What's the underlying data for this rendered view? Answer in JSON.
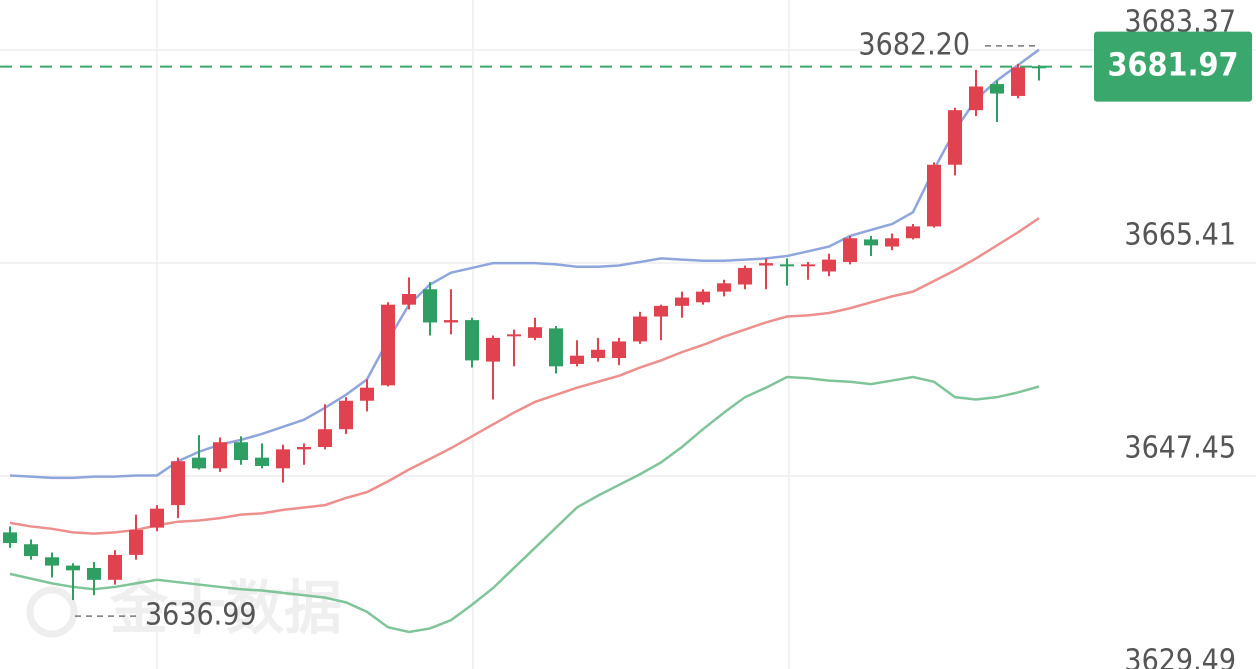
{
  "chart_data": {
    "type": "candlestick",
    "watermark": "金十数据",
    "up_color": "#e0434f",
    "down_color": "#2f9e62",
    "ylim": [
      3631.18,
      3687.59
    ],
    "yticks": [
      3629.49,
      3647.45,
      3665.41,
      3683.37
    ],
    "grid": true,
    "open": [
      3642.7,
      3641.7,
      3640.6,
      3639.9,
      3639.7,
      3638.7,
      3640.8,
      3643.1,
      3645.0,
      3649.0,
      3648.1,
      3650.3,
      3649.0,
      3648.1,
      3649.7,
      3649.9,
      3651.4,
      3653.8,
      3655.1,
      3661.9,
      3663.2,
      3660.4,
      3660.6,
      3657.1,
      3659.3,
      3659.1,
      3659.9,
      3656.9,
      3657.4,
      3657.4,
      3658.8,
      3660.9,
      3661.8,
      3662.1,
      3663.0,
      3663.6,
      3665.2,
      3665.3,
      3665.2,
      3664.7,
      3665.5,
      3667.4,
      3666.8,
      3667.5,
      3668.5,
      3673.7,
      3678.3,
      3680.5,
      3679.5,
      3682.0
    ],
    "high": [
      3643.2,
      3642.1,
      3641.0,
      3640.1,
      3640.2,
      3641.2,
      3644.2,
      3645.0,
      3649.0,
      3650.9,
      3650.7,
      3650.8,
      3650.2,
      3650.1,
      3650.2,
      3653.5,
      3654.1,
      3655.6,
      3662.1,
      3664.2,
      3663.8,
      3663.2,
      3660.8,
      3659.3,
      3659.8,
      3660.8,
      3660.1,
      3658.9,
      3659.1,
      3659.1,
      3661.3,
      3661.9,
      3663.0,
      3663.2,
      3664.0,
      3665.2,
      3665.8,
      3665.8,
      3665.5,
      3666.2,
      3667.7,
      3667.7,
      3667.9,
      3668.7,
      3673.9,
      3678.5,
      3681.7,
      3680.8,
      3682.2,
      3682.1
    ],
    "low": [
      3641.4,
      3640.4,
      3638.9,
      3636.99,
      3637.4,
      3638.3,
      3640.4,
      3642.8,
      3643.9,
      3648.0,
      3647.8,
      3648.4,
      3648.1,
      3646.9,
      3648.4,
      3649.7,
      3651.0,
      3652.9,
      3655.0,
      3661.5,
      3659.3,
      3659.4,
      3656.6,
      3653.9,
      3656.7,
      3658.9,
      3656.1,
      3656.7,
      3657.1,
      3656.8,
      3658.6,
      3658.9,
      3660.8,
      3661.9,
      3662.6,
      3663.2,
      3663.2,
      3663.5,
      3664.0,
      3664.3,
      3665.3,
      3666.0,
      3666.5,
      3667.4,
      3668.4,
      3672.8,
      3677.8,
      3677.3,
      3679.3,
      3680.8
    ],
    "close": [
      3641.8,
      3640.7,
      3639.9,
      3639.5,
      3638.7,
      3640.8,
      3642.9,
      3644.7,
      3648.7,
      3648.1,
      3650.3,
      3648.8,
      3648.3,
      3649.7,
      3649.9,
      3651.4,
      3653.8,
      3654.9,
      3661.9,
      3662.8,
      3660.4,
      3660.6,
      3657.2,
      3659.1,
      3659.4,
      3660.0,
      3656.7,
      3657.6,
      3658.1,
      3658.8,
      3660.9,
      3661.8,
      3662.5,
      3663.0,
      3663.7,
      3665.0,
      3665.4,
      3665.2,
      3665.3,
      3665.7,
      3667.5,
      3666.9,
      3667.5,
      3668.5,
      3673.7,
      3678.3,
      3680.3,
      3679.7,
      3681.9,
      3681.97
    ],
    "lines": [
      {
        "color": "#8fa6dc",
        "values": [
          3647.5,
          3647.4,
          3647.3,
          3647.3,
          3647.4,
          3647.4,
          3647.5,
          3647.5,
          3648.7,
          3649.5,
          3650.1,
          3650.5,
          3651.0,
          3651.6,
          3652.2,
          3653.2,
          3654.3,
          3655.6,
          3658.9,
          3661.9,
          3663.6,
          3664.6,
          3665.0,
          3665.4,
          3665.4,
          3665.4,
          3665.3,
          3665.1,
          3665.1,
          3665.2,
          3665.5,
          3665.8,
          3665.7,
          3665.6,
          3665.6,
          3665.7,
          3665.8,
          3666.0,
          3666.4,
          3666.8,
          3667.7,
          3668.2,
          3668.7,
          3669.7,
          3673.3,
          3676.6,
          3679.2,
          3680.8,
          3682.1,
          3683.4
        ]
      },
      {
        "color": "#ec8f8d",
        "values": [
          3643.5,
          3643.2,
          3643.0,
          3642.7,
          3642.6,
          3642.7,
          3642.9,
          3643.3,
          3643.6,
          3643.7,
          3643.9,
          3644.2,
          3644.3,
          3644.6,
          3644.8,
          3645.0,
          3645.6,
          3646.1,
          3647.0,
          3648.0,
          3648.9,
          3649.8,
          3650.8,
          3651.8,
          3652.8,
          3653.7,
          3654.3,
          3654.9,
          3655.4,
          3655.9,
          3656.6,
          3657.2,
          3657.9,
          3658.5,
          3659.2,
          3659.8,
          3660.4,
          3660.9,
          3661.0,
          3661.2,
          3661.6,
          3662.1,
          3662.6,
          3663.0,
          3663.9,
          3664.8,
          3665.8,
          3666.9,
          3668.0,
          3669.2
        ]
      },
      {
        "color": "#80c49a",
        "values": [
          3639.2,
          3638.8,
          3638.4,
          3638.1,
          3637.9,
          3638.1,
          3638.4,
          3638.7,
          3638.5,
          3638.3,
          3638.1,
          3637.9,
          3637.8,
          3637.6,
          3637.4,
          3637.2,
          3636.8,
          3636.0,
          3634.7,
          3634.3,
          3634.6,
          3635.3,
          3636.6,
          3638.0,
          3639.7,
          3641.4,
          3643.1,
          3644.8,
          3645.8,
          3646.7,
          3647.6,
          3648.6,
          3649.9,
          3651.4,
          3652.8,
          3654.1,
          3654.9,
          3655.8,
          3655.7,
          3655.5,
          3655.4,
          3655.2,
          3655.5,
          3655.8,
          3655.4,
          3654.1,
          3653.9,
          3654.1,
          3654.5,
          3655.0
        ]
      }
    ],
    "high_mark": {
      "value": 3682.2,
      "label": "3682.20"
    },
    "low_mark": 3636.99,
    "last": 3681.97,
    "last_color": "#3aa76d"
  }
}
